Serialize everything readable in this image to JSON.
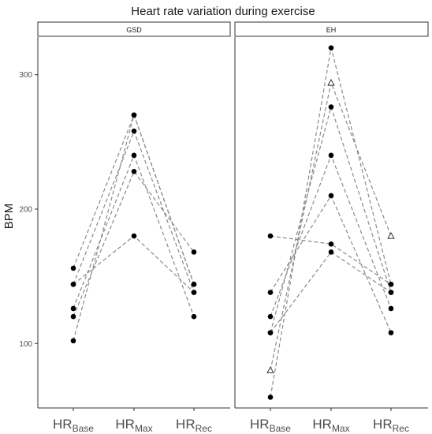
{
  "chart_data": {
    "type": "line",
    "title": "Heart rate variation during exercise",
    "ylabel": "BPM",
    "xlabel": "",
    "ylim": [
      52,
      328
    ],
    "yticks": [
      100,
      200,
      300
    ],
    "grid": false,
    "categories": [
      {
        "main": "HR",
        "sub": "Base"
      },
      {
        "main": "HR",
        "sub": "Max"
      },
      {
        "main": "HR",
        "sub": "Rec"
      }
    ],
    "panels": [
      {
        "name": "GSD",
        "series": [
          {
            "marker": "dot",
            "values": [
              156,
              270,
              144
            ]
          },
          {
            "marker": "dot",
            "values": [
              144,
              258,
              138
            ]
          },
          {
            "marker": "dot",
            "values": [
              126,
              240,
              120
            ]
          },
          {
            "marker": "dot",
            "values": [
              120,
              228,
              168
            ]
          },
          {
            "marker": "dot",
            "values": [
              102,
              270,
              144
            ]
          },
          {
            "marker": "dot",
            "values": [
              144,
              180,
              138
            ]
          }
        ]
      },
      {
        "name": "EH",
        "series": [
          {
            "marker": "dot",
            "values": [
              60,
              320,
              144
            ]
          },
          {
            "marker": "dot",
            "values": [
              108,
              276,
              138
            ]
          },
          {
            "marker": "dot",
            "values": [
              120,
              240,
              126
            ]
          },
          {
            "marker": "dot",
            "values": [
              138,
              210,
              108
            ]
          },
          {
            "marker": "dot",
            "values": [
              180,
              174,
              144
            ]
          },
          {
            "marker": "dot",
            "values": [
              108,
              168,
              138
            ]
          },
          {
            "marker": "triangle",
            "values": [
              80,
              294,
              180
            ]
          }
        ]
      }
    ]
  }
}
